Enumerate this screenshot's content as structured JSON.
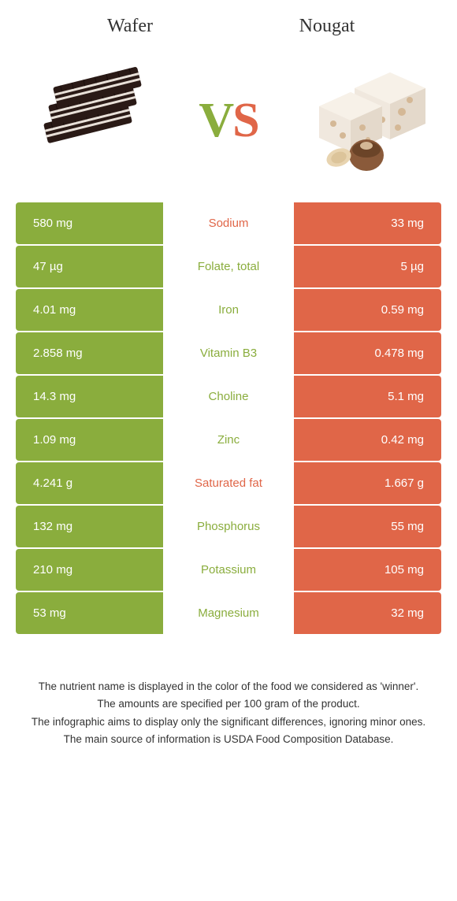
{
  "colors": {
    "left": "#8aad3d",
    "right": "#e06648",
    "text": "#333333",
    "white": "#ffffff"
  },
  "header": {
    "left_title": "Wafer",
    "right_title": "Nougat",
    "vs_v": "V",
    "vs_s": "S"
  },
  "rows": [
    {
      "left": "580 mg",
      "label": "Sodium",
      "right": "33 mg",
      "winner": "right"
    },
    {
      "left": "47 µg",
      "label": "Folate, total",
      "right": "5 µg",
      "winner": "left"
    },
    {
      "left": "4.01 mg",
      "label": "Iron",
      "right": "0.59 mg",
      "winner": "left"
    },
    {
      "left": "2.858 mg",
      "label": "Vitamin B3",
      "right": "0.478 mg",
      "winner": "left"
    },
    {
      "left": "14.3 mg",
      "label": "Choline",
      "right": "5.1 mg",
      "winner": "left"
    },
    {
      "left": "1.09 mg",
      "label": "Zinc",
      "right": "0.42 mg",
      "winner": "left"
    },
    {
      "left": "4.241 g",
      "label": "Saturated fat",
      "right": "1.667 g",
      "winner": "right"
    },
    {
      "left": "132 mg",
      "label": "Phosphorus",
      "right": "55 mg",
      "winner": "left"
    },
    {
      "left": "210 mg",
      "label": "Potassium",
      "right": "105 mg",
      "winner": "left"
    },
    {
      "left": "53 mg",
      "label": "Magnesium",
      "right": "32 mg",
      "winner": "left"
    }
  ],
  "footnotes": [
    "The nutrient name is displayed in the color of the food we considered as 'winner'.",
    "The amounts are specified per 100 gram of the product.",
    "The infographic aims to display only the significant differences, ignoring minor ones.",
    "The main source of information is USDA Food Composition Database."
  ]
}
